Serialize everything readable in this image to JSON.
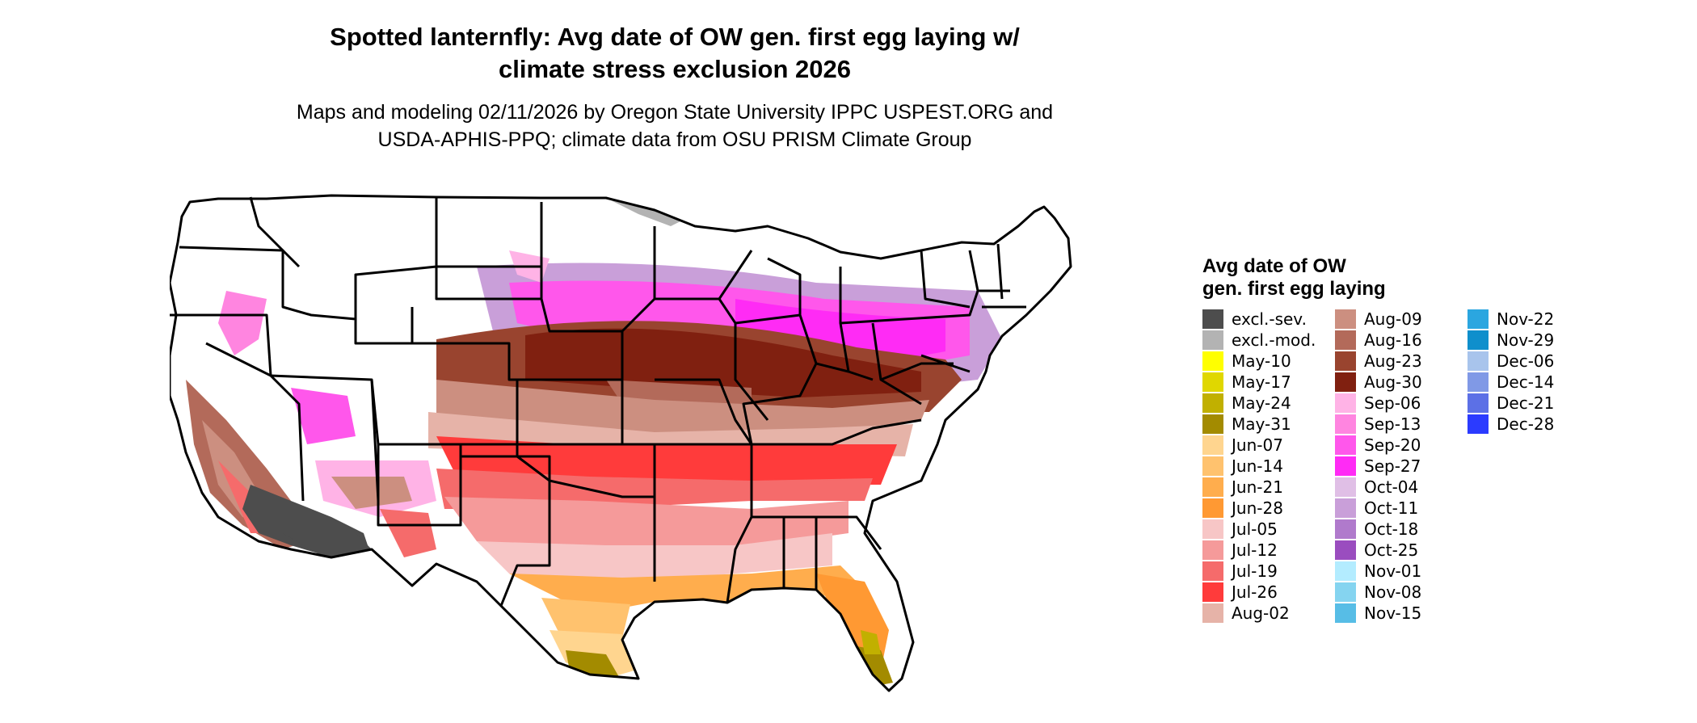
{
  "title_line1": "Spotted lanternfly: Avg date of OW gen. first egg laying w/",
  "title_line2": "climate stress exclusion 2026",
  "subtitle_line1": "Maps and modeling 02/11/2026 by Oregon State University IPPC USPEST.ORG and",
  "subtitle_line2": "USDA-APHIS-PPQ; climate data from OSU PRISM Climate Group",
  "legend": {
    "title": "Avg date of OW gen. first egg laying",
    "columns": [
      [
        {
          "label": "excl.-sev.",
          "color": "#4d4d4d"
        },
        {
          "label": "excl.-mod.",
          "color": "#b3b3b3"
        },
        {
          "label": "May-10",
          "color": "#ffff00"
        },
        {
          "label": "May-17",
          "color": "#e0d700"
        },
        {
          "label": "May-24",
          "color": "#c1b000"
        },
        {
          "label": "May-31",
          "color": "#a38b00"
        },
        {
          "label": "Jun-07",
          "color": "#ffd58f"
        },
        {
          "label": "Jun-14",
          "color": "#ffc26e"
        },
        {
          "label": "Jun-21",
          "color": "#ffad4d"
        },
        {
          "label": "Jun-28",
          "color": "#ff9933"
        },
        {
          "label": "Jul-05",
          "color": "#f7c6c6"
        },
        {
          "label": "Jul-12",
          "color": "#f59a9a"
        },
        {
          "label": "Jul-19",
          "color": "#f56b6b"
        },
        {
          "label": "Jul-26",
          "color": "#ff3b3b"
        },
        {
          "label": "Aug-02",
          "color": "#e6b3a8"
        }
      ],
      [
        {
          "label": "Aug-09",
          "color": "#cc8f80"
        },
        {
          "label": "Aug-16",
          "color": "#b36a5a"
        },
        {
          "label": "Aug-23",
          "color": "#99442f"
        },
        {
          "label": "Aug-30",
          "color": "#802010"
        },
        {
          "label": "Sep-06",
          "color": "#ffb3e6"
        },
        {
          "label": "Sep-13",
          "color": "#ff85e0"
        },
        {
          "label": "Sep-20",
          "color": "#ff57eb"
        },
        {
          "label": "Sep-27",
          "color": "#ff2bf5"
        },
        {
          "label": "Oct-04",
          "color": "#e0bfe6"
        },
        {
          "label": "Oct-11",
          "color": "#c99fd9"
        },
        {
          "label": "Oct-18",
          "color": "#b07acc"
        },
        {
          "label": "Oct-25",
          "color": "#9a4dbf"
        },
        {
          "label": "Nov-01",
          "color": "#b3ecff"
        },
        {
          "label": "Nov-08",
          "color": "#85d4f0"
        },
        {
          "label": "Nov-15",
          "color": "#57bde6"
        }
      ],
      [
        {
          "label": "Nov-22",
          "color": "#2ba6e0"
        },
        {
          "label": "Nov-29",
          "color": "#0f8fcc"
        },
        {
          "label": "Dec-06",
          "color": "#a8c4ec"
        },
        {
          "label": "Dec-14",
          "color": "#8099e6"
        },
        {
          "label": "Dec-21",
          "color": "#5c70e6"
        },
        {
          "label": "Dec-28",
          "color": "#2b3bff"
        }
      ]
    ]
  }
}
